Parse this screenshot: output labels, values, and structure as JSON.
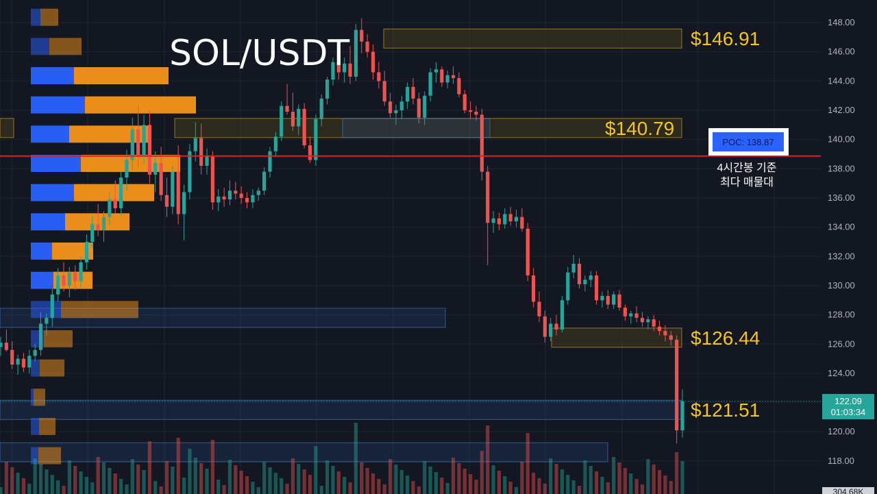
{
  "title": "SOL/USDT",
  "poc_box": {
    "text": "POC: 138.87",
    "note_line1": "4시간봉 기준",
    "note_line2": "최다 매물대"
  },
  "level_labels": [
    {
      "text": "$146.91",
      "value": 146.91
    },
    {
      "text": "$140.79",
      "value": 140.79
    },
    {
      "text": "$126.44",
      "value": 126.44
    },
    {
      "text": "$121.51",
      "value": 121.51
    }
  ],
  "price_tag": {
    "price": "122.09",
    "timer": "01:03:34"
  },
  "volume_tag": "304.68K",
  "colors": {
    "background": "#131722",
    "up": "#26a69a",
    "down": "#ef5350",
    "profile_buy": "#2962ff",
    "profile_sell": "#f7931a",
    "level_label": "#f5c518",
    "poc_line": "#e02020",
    "poc_box": "#2962ff"
  },
  "chart_data": {
    "type": "candlestick",
    "symbol": "SOL/USDT",
    "interval": "4h",
    "ylim": [
      117,
      149
    ],
    "y_ticks": [
      "148.00",
      "146.00",
      "144.00",
      "142.00",
      "140.00",
      "138.00",
      "136.00",
      "134.00",
      "132.00",
      "130.00",
      "128.00",
      "126.00",
      "124.00",
      "122.00",
      "120.00",
      "118.00"
    ],
    "poc": 138.87,
    "candles": [
      [
        125.8,
        126.5,
        125.2,
        126.1
      ],
      [
        126.1,
        127.0,
        125.5,
        125.6
      ],
      [
        125.6,
        126.2,
        124.3,
        124.6
      ],
      [
        124.6,
        125.3,
        123.9,
        125.0
      ],
      [
        125.0,
        125.4,
        124.1,
        124.4
      ],
      [
        124.4,
        125.6,
        124.0,
        125.2
      ],
      [
        125.2,
        126.0,
        124.8,
        125.6
      ],
      [
        125.6,
        128.2,
        125.2,
        127.4
      ],
      [
        127.4,
        128.1,
        126.6,
        127.8
      ],
      [
        127.8,
        129.8,
        127.2,
        129.4
      ],
      [
        129.4,
        131.2,
        128.9,
        130.7
      ],
      [
        130.7,
        131.6,
        129.6,
        130.0
      ],
      [
        130.0,
        131.3,
        129.2,
        130.9
      ],
      [
        130.9,
        131.4,
        129.7,
        130.3
      ],
      [
        130.3,
        132.0,
        129.9,
        131.6
      ],
      [
        131.6,
        133.5,
        131.1,
        133.0
      ],
      [
        133.0,
        134.8,
        132.6,
        134.2
      ],
      [
        134.2,
        135.6,
        133.4,
        133.8
      ],
      [
        133.8,
        135.1,
        133.0,
        134.7
      ],
      [
        134.7,
        136.4,
        134.1,
        135.9
      ],
      [
        135.9,
        137.2,
        134.9,
        135.3
      ],
      [
        135.3,
        137.8,
        134.8,
        137.4
      ],
      [
        137.4,
        139.3,
        136.5,
        138.6
      ],
      [
        138.6,
        141.5,
        137.9,
        140.7
      ],
      [
        140.7,
        142.3,
        138.1,
        138.9
      ],
      [
        138.9,
        141.7,
        138.3,
        141.0
      ],
      [
        141.0,
        142.0,
        137.0,
        137.6
      ],
      [
        137.6,
        139.2,
        136.4,
        138.4
      ],
      [
        138.4,
        139.5,
        135.8,
        136.2
      ],
      [
        136.2,
        137.4,
        134.7,
        135.4
      ],
      [
        135.4,
        138.2,
        134.9,
        137.8
      ],
      [
        137.8,
        139.6,
        134.2,
        134.9
      ],
      [
        134.9,
        136.9,
        133.1,
        136.4
      ],
      [
        136.4,
        139.7,
        135.9,
        139.2
      ],
      [
        139.2,
        141.2,
        138.5,
        140.1
      ],
      [
        140.1,
        141.1,
        137.6,
        138.2
      ],
      [
        138.2,
        139.4,
        137.6,
        138.9
      ],
      [
        138.9,
        139.2,
        135.2,
        135.7
      ],
      [
        135.7,
        136.6,
        135.1,
        136.1
      ],
      [
        136.1,
        136.7,
        135.4,
        135.9
      ],
      [
        135.9,
        137.2,
        135.5,
        136.5
      ],
      [
        136.5,
        137.1,
        135.9,
        136.3
      ],
      [
        136.3,
        136.8,
        135.6,
        136.0
      ],
      [
        136.0,
        136.4,
        135.3,
        135.7
      ],
      [
        135.7,
        136.6,
        135.3,
        136.2
      ],
      [
        136.2,
        136.7,
        135.8,
        136.5
      ],
      [
        136.5,
        138.1,
        136.2,
        137.8
      ],
      [
        137.8,
        139.5,
        137.4,
        139.2
      ],
      [
        139.2,
        140.5,
        138.8,
        140.2
      ],
      [
        140.2,
        142.6,
        139.9,
        142.3
      ],
      [
        142.3,
        143.8,
        141.7,
        141.9
      ],
      [
        141.9,
        143.2,
        140.6,
        140.9
      ],
      [
        140.9,
        142.4,
        140.3,
        142.1
      ],
      [
        142.1,
        142.5,
        139.4,
        139.6
      ],
      [
        139.6,
        140.2,
        138.4,
        138.6
      ],
      [
        138.6,
        141.7,
        138.2,
        141.4
      ],
      [
        141.4,
        143.1,
        140.9,
        142.8
      ],
      [
        142.8,
        144.3,
        142.4,
        144.1
      ],
      [
        144.1,
        145.6,
        143.7,
        145.3
      ],
      [
        145.3,
        146.8,
        144.1,
        144.6
      ],
      [
        144.6,
        145.6,
        143.9,
        145.2
      ],
      [
        145.2,
        146.4,
        143.8,
        144.3
      ],
      [
        144.3,
        147.9,
        144.0,
        147.5
      ],
      [
        147.5,
        148.3,
        145.9,
        146.7
      ],
      [
        146.7,
        147.2,
        145.6,
        146.0
      ],
      [
        146.0,
        146.5,
        144.1,
        144.6
      ],
      [
        144.6,
        145.3,
        143.5,
        144.0
      ],
      [
        144.0,
        144.7,
        142.3,
        142.6
      ],
      [
        142.6,
        143.2,
        141.5,
        141.8
      ],
      [
        141.8,
        142.4,
        141.0,
        142.0
      ],
      [
        142.0,
        143.0,
        141.4,
        142.6
      ],
      [
        142.6,
        143.9,
        142.1,
        143.6
      ],
      [
        143.6,
        144.2,
        142.4,
        142.8
      ],
      [
        142.8,
        143.2,
        141.1,
        141.5
      ],
      [
        141.5,
        143.3,
        141.0,
        143.0
      ],
      [
        143.0,
        144.9,
        142.6,
        144.6
      ],
      [
        144.6,
        145.3,
        143.9,
        144.8
      ],
      [
        144.8,
        145.0,
        143.6,
        143.9
      ],
      [
        143.9,
        144.7,
        143.5,
        144.4
      ],
      [
        144.4,
        145.0,
        143.8,
        144.2
      ],
      [
        144.2,
        144.6,
        142.9,
        143.1
      ],
      [
        143.1,
        143.4,
        141.8,
        142.0
      ],
      [
        142.0,
        142.6,
        141.4,
        141.9
      ],
      [
        141.9,
        142.3,
        141.3,
        141.7
      ],
      [
        141.7,
        142.1,
        137.2,
        137.8
      ],
      [
        137.8,
        138.2,
        131.4,
        134.3
      ],
      [
        134.3,
        135.1,
        133.6,
        134.6
      ],
      [
        134.6,
        135.0,
        133.8,
        134.2
      ],
      [
        134.2,
        135.3,
        133.9,
        134.9
      ],
      [
        134.9,
        135.4,
        134.1,
        134.4
      ],
      [
        134.4,
        135.2,
        134.0,
        134.7
      ],
      [
        134.7,
        135.3,
        133.7,
        133.9
      ],
      [
        133.9,
        134.3,
        130.3,
        130.7
      ],
      [
        130.7,
        131.2,
        128.5,
        128.9
      ],
      [
        128.9,
        129.6,
        127.5,
        127.9
      ],
      [
        127.9,
        128.3,
        126.1,
        126.5
      ],
      [
        126.5,
        127.8,
        126.2,
        127.4
      ],
      [
        127.4,
        128.0,
        126.6,
        127.0
      ],
      [
        127.0,
        129.3,
        126.8,
        129.0
      ],
      [
        129.0,
        131.3,
        128.7,
        130.9
      ],
      [
        130.9,
        132.1,
        130.5,
        131.5
      ],
      [
        131.5,
        131.9,
        129.8,
        130.1
      ],
      [
        130.1,
        130.7,
        129.6,
        130.4
      ],
      [
        130.4,
        131.0,
        129.9,
        130.7
      ],
      [
        130.7,
        131.0,
        128.7,
        129.0
      ],
      [
        129.0,
        129.6,
        128.5,
        129.3
      ],
      [
        129.3,
        129.7,
        128.4,
        128.7
      ],
      [
        128.7,
        129.6,
        128.4,
        129.4
      ],
      [
        129.4,
        129.7,
        128.3,
        128.5
      ],
      [
        128.5,
        128.7,
        127.6,
        127.9
      ],
      [
        127.9,
        128.3,
        127.4,
        128.1
      ],
      [
        128.1,
        128.6,
        127.5,
        127.8
      ],
      [
        127.8,
        128.2,
        127.2,
        127.5
      ],
      [
        127.5,
        127.9,
        127.0,
        127.7
      ],
      [
        127.7,
        128.0,
        126.9,
        127.2
      ],
      [
        127.2,
        127.6,
        126.6,
        126.9
      ],
      [
        126.9,
        127.3,
        126.2,
        126.6
      ],
      [
        126.6,
        126.9,
        125.9,
        126.3
      ],
      [
        126.3,
        126.6,
        119.2,
        120.1
      ],
      [
        120.1,
        122.9,
        119.6,
        122.09
      ]
    ],
    "volume_profile": [
      {
        "price": 148.0,
        "buy": 14,
        "sell": 26
      },
      {
        "price": 146.0,
        "buy": 27,
        "sell": 47
      },
      {
        "price": 144.0,
        "buy": 63,
        "sell": 138
      },
      {
        "price": 142.0,
        "buy": 79,
        "sell": 162
      },
      {
        "price": 140.0,
        "buy": 56,
        "sell": 119
      },
      {
        "price": 138.0,
        "buy": 73,
        "sell": 145
      },
      {
        "price": 136.0,
        "buy": 63,
        "sell": 117
      },
      {
        "price": 134.0,
        "buy": 50,
        "sell": 94
      },
      {
        "price": 132.0,
        "buy": 31,
        "sell": 60
      },
      {
        "price": 130.0,
        "buy": 33,
        "sell": 57
      },
      {
        "price": 128.0,
        "buy": 44,
        "sell": 113
      },
      {
        "price": 126.0,
        "buy": 19,
        "sell": 42
      },
      {
        "price": 124.0,
        "buy": 13,
        "sell": 36
      },
      {
        "price": 122.0,
        "buy": 4,
        "sell": 17
      },
      {
        "price": 120.0,
        "buy": 12,
        "sell": 24
      },
      {
        "price": 118.0,
        "buy": 11,
        "sell": 33
      }
    ]
  }
}
